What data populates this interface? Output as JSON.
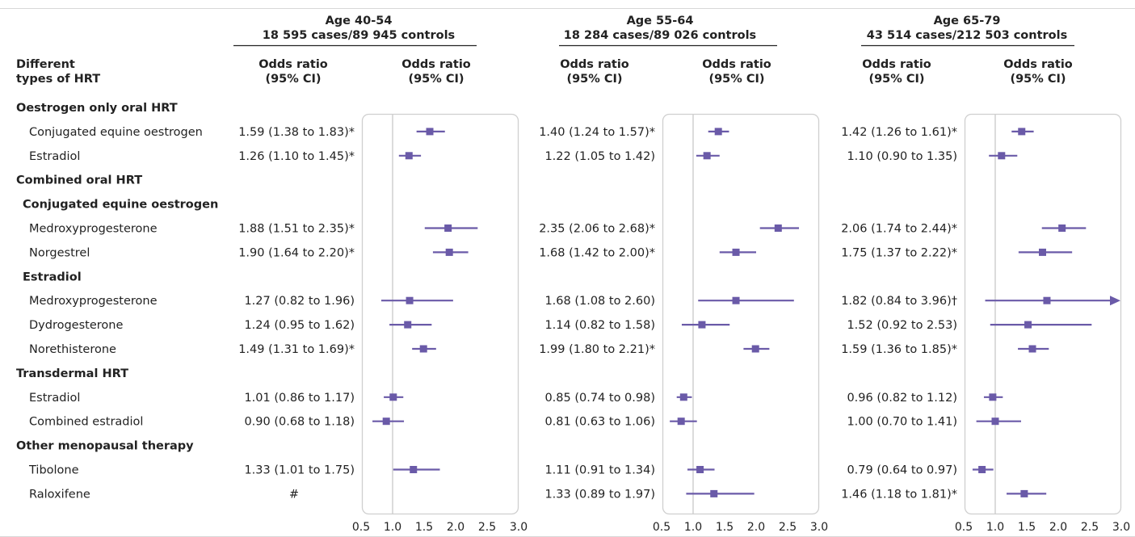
{
  "colors": {
    "marker": "#6a5aa8",
    "panel_border": "#cfcfcf",
    "reference_line": "#c8c8c8",
    "rule": "#222222"
  },
  "header": {
    "row_label_line1": "Different",
    "row_label_line2": "types of HRT",
    "or_line1": "Odds ratio",
    "or_line2": "(95% CI)"
  },
  "chart_data": {
    "type": "forest",
    "axis": {
      "ticks": [
        "0.5",
        "1.0",
        "1.5",
        "2.0",
        "2.5",
        "3.0"
      ],
      "range": [
        0.5,
        3.0
      ],
      "reference": 1.0,
      "grid": false
    },
    "groups": [
      {
        "age": "Age 40-54",
        "counts": "18 595 cases/89 945 controls"
      },
      {
        "age": "Age 55-64",
        "counts": "18 284 cases/89 026 controls"
      },
      {
        "age": "Age 65-79",
        "counts": "43 514 cases/212 503 controls"
      }
    ],
    "rows": [
      {
        "type": "section",
        "label": "Oestrogen only oral HRT"
      },
      {
        "type": "item",
        "label": "Conjugated equine oestrogen",
        "cells": [
          {
            "text": "1.59 (1.38 to 1.83)*",
            "or": 1.59,
            "lo": 1.38,
            "hi": 1.83
          },
          {
            "text": "1.40 (1.24 to 1.57)*",
            "or": 1.4,
            "lo": 1.24,
            "hi": 1.57
          },
          {
            "text": "1.42 (1.26 to 1.61)*",
            "or": 1.42,
            "lo": 1.26,
            "hi": 1.61
          }
        ]
      },
      {
        "type": "item",
        "label": "Estradiol",
        "cells": [
          {
            "text": "1.26 (1.10 to 1.45)*",
            "or": 1.26,
            "lo": 1.1,
            "hi": 1.45
          },
          {
            "text": "1.22 (1.05 to 1.42)",
            "or": 1.22,
            "lo": 1.05,
            "hi": 1.42
          },
          {
            "text": "1.10 (0.90 to 1.35)",
            "or": 1.1,
            "lo": 0.9,
            "hi": 1.35
          }
        ]
      },
      {
        "type": "section",
        "label": "Combined oral HRT"
      },
      {
        "type": "subsection",
        "label": "Conjugated equine oestrogen"
      },
      {
        "type": "item",
        "label": "Medroxyprogesterone",
        "cells": [
          {
            "text": "1.88 (1.51 to 2.35)*",
            "or": 1.88,
            "lo": 1.51,
            "hi": 2.35
          },
          {
            "text": "2.35 (2.06 to 2.68)*",
            "or": 2.35,
            "lo": 2.06,
            "hi": 2.68
          },
          {
            "text": "2.06 (1.74 to 2.44)*",
            "or": 2.06,
            "lo": 1.74,
            "hi": 2.44
          }
        ]
      },
      {
        "type": "item",
        "label": "Norgestrel",
        "cells": [
          {
            "text": "1.90 (1.64 to 2.20)*",
            "or": 1.9,
            "lo": 1.64,
            "hi": 2.2
          },
          {
            "text": "1.68 (1.42 to 2.00)*",
            "or": 1.68,
            "lo": 1.42,
            "hi": 2.0
          },
          {
            "text": "1.75 (1.37 to 2.22)*",
            "or": 1.75,
            "lo": 1.37,
            "hi": 2.22
          }
        ]
      },
      {
        "type": "subsection",
        "label": "Estradiol"
      },
      {
        "type": "item",
        "label": "Medroxyprogesterone",
        "cells": [
          {
            "text": "1.27 (0.82 to 1.96)",
            "or": 1.27,
            "lo": 0.82,
            "hi": 1.96
          },
          {
            "text": "1.68 (1.08 to 2.60)",
            "or": 1.68,
            "lo": 1.08,
            "hi": 2.6
          },
          {
            "text": "1.82 (0.84 to 3.96)†",
            "or": 1.82,
            "lo": 0.84,
            "hi": 3.96
          }
        ]
      },
      {
        "type": "item",
        "label": "Dydrogesterone",
        "cells": [
          {
            "text": "1.24 (0.95 to 1.62)",
            "or": 1.24,
            "lo": 0.95,
            "hi": 1.62
          },
          {
            "text": "1.14 (0.82 to 1.58)",
            "or": 1.14,
            "lo": 0.82,
            "hi": 1.58
          },
          {
            "text": "1.52 (0.92 to 2.53)",
            "or": 1.52,
            "lo": 0.92,
            "hi": 2.53
          }
        ]
      },
      {
        "type": "item",
        "label": "Norethisterone",
        "cells": [
          {
            "text": "1.49 (1.31 to 1.69)*",
            "or": 1.49,
            "lo": 1.31,
            "hi": 1.69
          },
          {
            "text": "1.99 (1.80 to 2.21)*",
            "or": 1.99,
            "lo": 1.8,
            "hi": 2.21
          },
          {
            "text": "1.59 (1.36 to 1.85)*",
            "or": 1.59,
            "lo": 1.36,
            "hi": 1.85
          }
        ]
      },
      {
        "type": "section",
        "label": "Transdermal HRT"
      },
      {
        "type": "item",
        "label": "Estradiol",
        "cells": [
          {
            "text": "1.01 (0.86 to 1.17)",
            "or": 1.01,
            "lo": 0.86,
            "hi": 1.17
          },
          {
            "text": "0.85 (0.74 to 0.98)",
            "or": 0.85,
            "lo": 0.74,
            "hi": 0.98
          },
          {
            "text": "0.96 (0.82 to 1.12)",
            "or": 0.96,
            "lo": 0.82,
            "hi": 1.12
          }
        ]
      },
      {
        "type": "item",
        "label": "Combined estradiol",
        "cells": [
          {
            "text": "0.90 (0.68 to 1.18)",
            "or": 0.9,
            "lo": 0.68,
            "hi": 1.18
          },
          {
            "text": "0.81 (0.63 to 1.06)",
            "or": 0.81,
            "lo": 0.63,
            "hi": 1.06
          },
          {
            "text": "1.00 (0.70 to 1.41)",
            "or": 1.0,
            "lo": 0.7,
            "hi": 1.41
          }
        ]
      },
      {
        "type": "section",
        "label": "Other menopausal therapy"
      },
      {
        "type": "item",
        "label": "Tibolone",
        "cells": [
          {
            "text": "1.33 (1.01 to 1.75)",
            "or": 1.33,
            "lo": 1.01,
            "hi": 1.75
          },
          {
            "text": "1.11 (0.91 to 1.34)",
            "or": 1.11,
            "lo": 0.91,
            "hi": 1.34
          },
          {
            "text": "0.79 (0.64 to 0.97)",
            "or": 0.79,
            "lo": 0.64,
            "hi": 0.97
          }
        ]
      },
      {
        "type": "item",
        "label": "Raloxifene",
        "cells": [
          {
            "text": "#",
            "or": null,
            "lo": null,
            "hi": null
          },
          {
            "text": "1.33 (0.89 to 1.97)",
            "or": 1.33,
            "lo": 0.89,
            "hi": 1.97
          },
          {
            "text": "1.46 (1.18 to 1.81)*",
            "or": 1.46,
            "lo": 1.18,
            "hi": 1.81
          }
        ]
      }
    ]
  }
}
